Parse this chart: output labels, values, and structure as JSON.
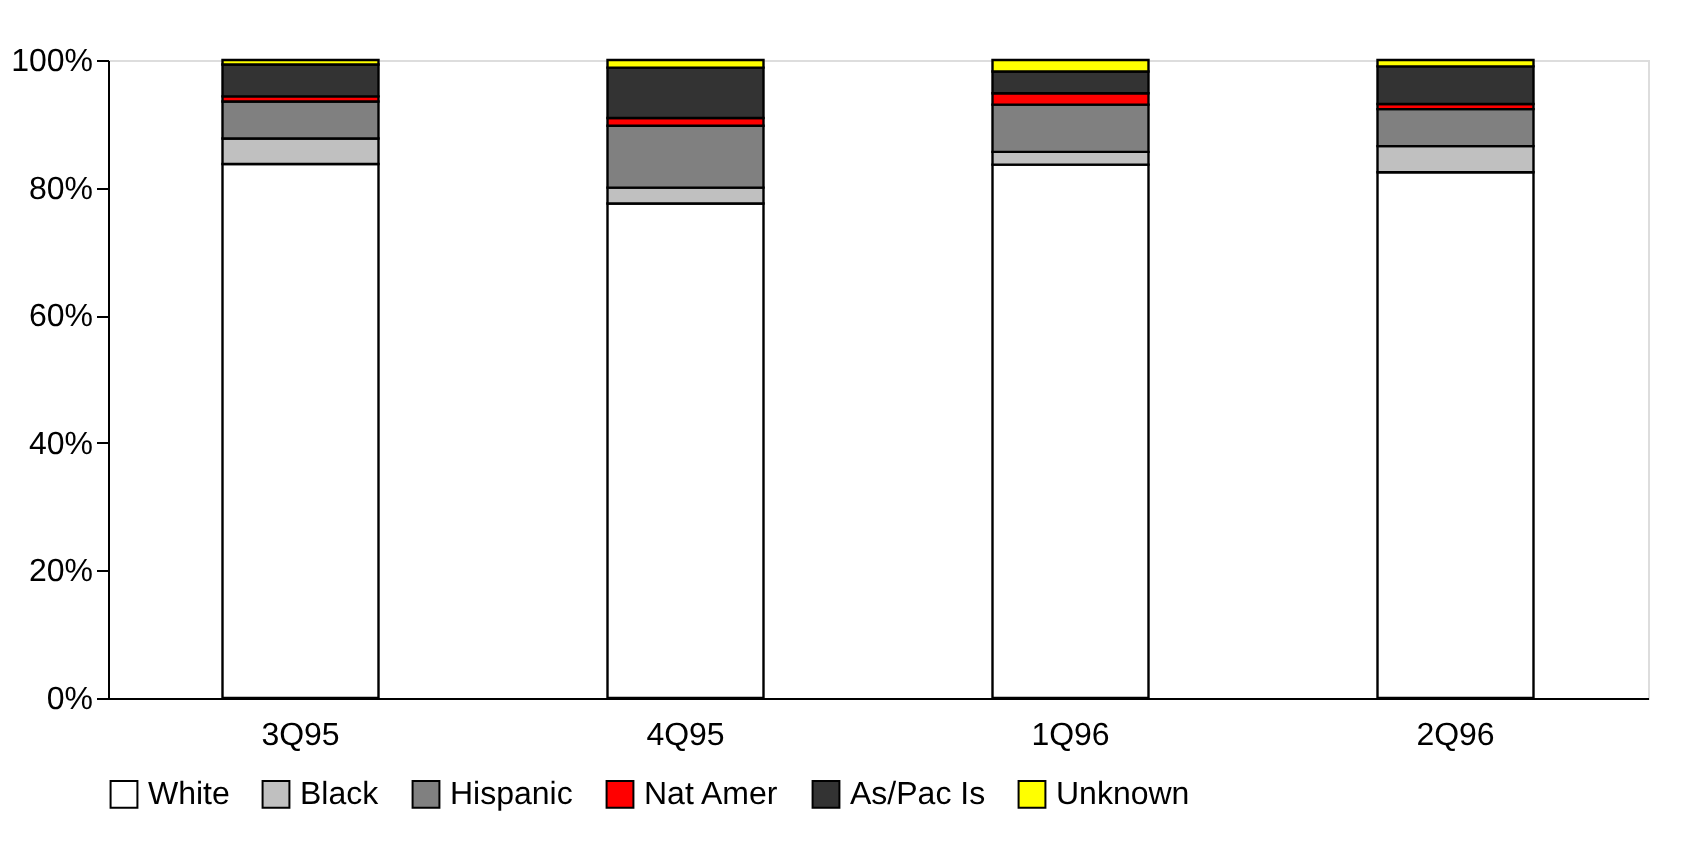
{
  "chart_data": {
    "type": "bar",
    "stacked": true,
    "categories": [
      "3Q95",
      "4Q95",
      "1Q96",
      "2Q96"
    ],
    "series": [
      {
        "name": "White",
        "color": "#ffffff",
        "values": [
          83.7,
          77.5,
          83.6,
          82.4
        ]
      },
      {
        "name": "Black",
        "color": "#c0c0c0",
        "values": [
          4.0,
          2.5,
          2.0,
          4.1
        ]
      },
      {
        "name": "Hispanic",
        "color": "#808080",
        "values": [
          5.8,
          9.7,
          7.4,
          5.8
        ]
      },
      {
        "name": "Nat Amer",
        "color": "#ff0000",
        "values": [
          0.8,
          1.2,
          1.8,
          0.8
        ]
      },
      {
        "name": "As/Pac Is",
        "color": "#333333",
        "values": [
          5.0,
          7.9,
          3.4,
          5.9
        ]
      },
      {
        "name": "Unknown",
        "color": "#ffff00",
        "values": [
          0.7,
          1.2,
          1.8,
          1.0
        ]
      }
    ],
    "ylim": [
      0,
      100
    ],
    "yticks": [
      {
        "value": 0,
        "label": "0%"
      },
      {
        "value": 20,
        "label": "20%"
      },
      {
        "value": 40,
        "label": "40%"
      },
      {
        "value": 60,
        "label": "60%"
      },
      {
        "value": 80,
        "label": "80%"
      },
      {
        "value": 100,
        "label": "100%"
      }
    ],
    "grid": false,
    "legend": "bottom"
  }
}
